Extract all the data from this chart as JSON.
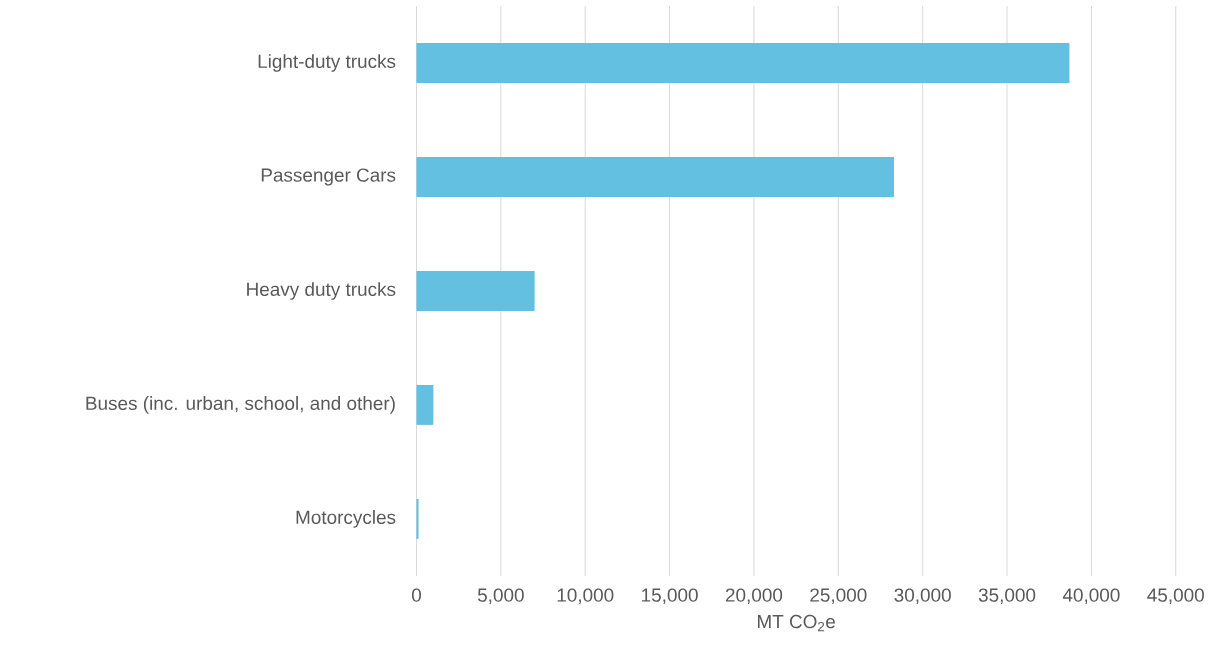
{
  "chart_data": {
    "type": "bar",
    "orientation": "horizontal",
    "xlabel": "MT CO$_{2}$e",
    "categories": [
      "Light-duty trucks",
      "Passenger Cars",
      "Heavy duty trucks",
      "Buses (inc. urban, school, and other)",
      "Motorcycles"
    ],
    "values": [
      38700,
      28300,
      7000,
      1000,
      120
    ],
    "color": "#63c0e0",
    "xlim": [
      0,
      45000
    ],
    "xticks": [
      0,
      {
        "value": 5000,
        "label": "5,000"
      },
      {
        "value": 10000,
        "label": "10,000"
      },
      {
        "value": 15000,
        "label": "15,000"
      },
      {
        "value": 20000,
        "label": "20,000"
      },
      {
        "value": 25000,
        "label": "25,000"
      },
      {
        "value": 30000,
        "label": "30,000"
      },
      {
        "value": 35000,
        "label": "35,000"
      },
      {
        "value": 40000,
        "label": "40,000"
      },
      {
        "value": 45000,
        "label": "45,000"
      }
    ],
    "grid": "x"
  }
}
